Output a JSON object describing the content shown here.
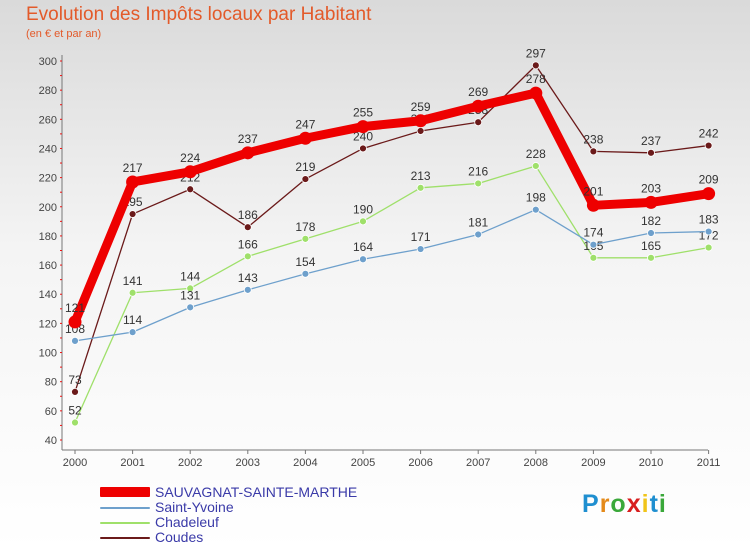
{
  "chart_data": {
    "type": "line",
    "title": "Evolution des Impôts locaux par Habitant",
    "subtitle": "(en € et par an)",
    "xlabel": "",
    "ylabel": "",
    "categories": [
      "2000",
      "2001",
      "2002",
      "2003",
      "2004",
      "2005",
      "2006",
      "2007",
      "2008",
      "2009",
      "2010",
      "2011"
    ],
    "ylim": [
      40,
      300
    ],
    "yticks": [
      40,
      60,
      80,
      100,
      120,
      140,
      160,
      180,
      200,
      220,
      240,
      260,
      280,
      300
    ],
    "grid": false,
    "legend_position": "bottom-left",
    "series": [
      {
        "name": "Coudes",
        "color": "#6b1a1a",
        "values": [
          73,
          195,
          212,
          186,
          219,
          240,
          252,
          258,
          297,
          238,
          237,
          242
        ],
        "labels": [
          "73",
          "195",
          "212",
          "186",
          "219",
          "240",
          "252",
          "258",
          "297",
          "238",
          "237",
          "242"
        ]
      },
      {
        "name": "Chadeleuf",
        "color": "#9fe06a",
        "values": [
          52,
          141,
          144,
          166,
          178,
          190,
          213,
          216,
          228,
          165,
          165,
          172
        ],
        "labels": [
          "52",
          "141",
          "144",
          "166",
          "178",
          "190",
          "213",
          "216",
          "228",
          "165",
          "165",
          "172"
        ]
      },
      {
        "name": "Saint-Yvoine",
        "color": "#6ea0cc",
        "values": [
          108,
          114,
          131,
          143,
          154,
          164,
          171,
          181,
          198,
          174,
          182,
          183
        ],
        "labels": [
          "108",
          "114",
          "131",
          "143",
          "154",
          "164",
          "171",
          "181",
          "198",
          "174",
          "182",
          "183"
        ]
      },
      {
        "name": "SAUVAGNAT-SAINTE-MARTHE",
        "color": "#ee0000",
        "values": [
          121,
          217,
          224,
          237,
          247,
          255,
          259,
          269,
          278,
          201,
          203,
          209
        ],
        "labels": [
          "121",
          "217",
          "224",
          "237",
          "247",
          "255",
          "259",
          "269",
          "278",
          "201",
          "203",
          "209"
        ]
      }
    ]
  },
  "legend": {
    "items": [
      {
        "name": "SAUVAGNAT-SAINTE-MARTHE",
        "color": "#ee0000"
      },
      {
        "name": "Saint-Yvoine",
        "color": "#6ea0cc"
      },
      {
        "name": "Chadeleuf",
        "color": "#9fe06a"
      },
      {
        "name": "Coudes",
        "color": "#6b1a1a"
      }
    ]
  },
  "brand": {
    "letters": [
      "P",
      "r",
      "o",
      "x",
      "i",
      "t",
      "i"
    ],
    "colors": [
      "#1f8fd0",
      "#e48a1a",
      "#3aa83a",
      "#d81e1e",
      "#f0c419",
      "#1f8fd0",
      "#3aa83a"
    ]
  }
}
